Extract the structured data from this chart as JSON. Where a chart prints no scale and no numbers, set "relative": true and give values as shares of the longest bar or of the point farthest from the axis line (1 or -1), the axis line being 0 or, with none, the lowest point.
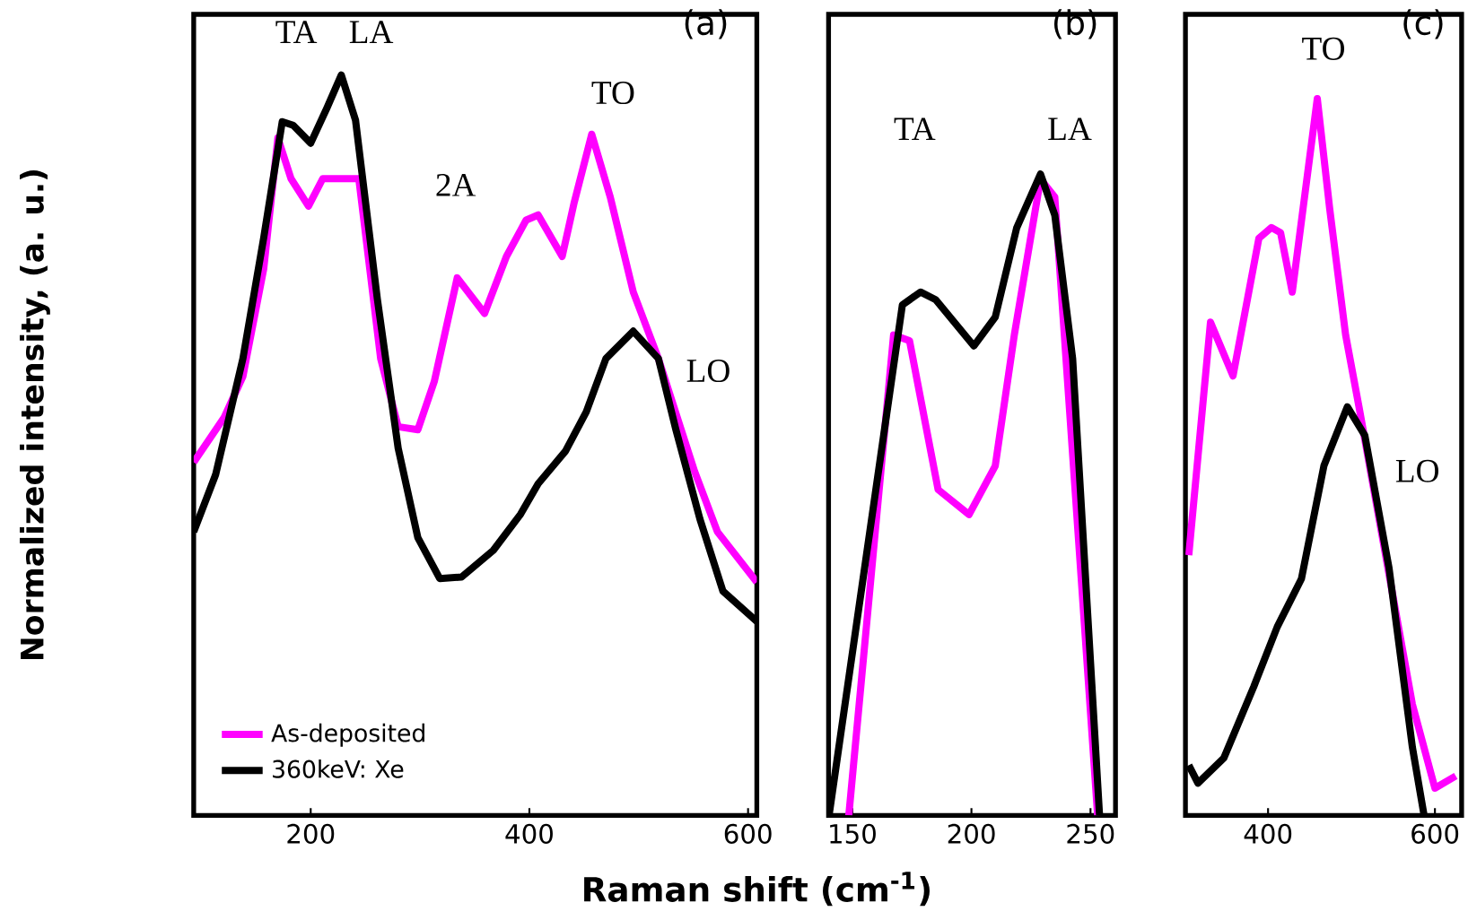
{
  "chart_data": [
    {
      "type": "line",
      "title": "(a)",
      "xlabel": "Raman shift (cm$^{-1}$)",
      "ylabel": "Normalized intensity, (a. u.)",
      "relative": true,
      "xlim": [
        93,
        608
      ],
      "xticks": [
        200,
        400,
        600
      ],
      "legend": "bottom left",
      "marker": "none",
      "line_style": "solid",
      "series": [
        {
          "name": "As-deposited",
          "color": "#ff00ff",
          "x": [
            93,
            121,
            138,
            157,
            170,
            182,
            198,
            211,
            228,
            244,
            264,
            280,
            298,
            313,
            334,
            359,
            379,
            397,
            408,
            430,
            441,
            457,
            474,
            495,
            518,
            551,
            572,
            608
          ],
          "values": [
            0.477,
            0.538,
            0.593,
            0.738,
            0.915,
            0.86,
            0.823,
            0.86,
            null,
            0.86,
            0.617,
            0.525,
            0.521,
            0.586,
            0.726,
            0.678,
            0.755,
            0.804,
            0.811,
            0.755,
            0.828,
            0.92,
            0.835,
            0.707,
            0.617,
            0.465,
            0.383,
            0.315
          ]
        },
        {
          "name": "360keV: Xe",
          "color": "#000000",
          "x": [
            93,
            113,
            138,
            157,
            174,
            184,
            200,
            215,
            228,
            241,
            261,
            280,
            298,
            318,
            338,
            367,
            392,
            408,
            433,
            452,
            470,
            495,
            518,
            534,
            556,
            577,
            608
          ],
          "values": [
            0.383,
            0.46,
            0.617,
            0.78,
            0.937,
            0.932,
            0.908,
            0.956,
            1.0,
            0.939,
            0.697,
            0.496,
            0.375,
            0.32,
            0.322,
            0.358,
            0.407,
            0.448,
            0.492,
            0.545,
            0.617,
            0.654,
            0.617,
            0.521,
            0.4,
            0.303,
            0.262
          ]
        }
      ],
      "annotations": [
        "TA",
        "LA",
        "2A",
        "TO",
        "LO"
      ]
    },
    {
      "type": "line",
      "title": "(b)",
      "relative": true,
      "xlim": [
        140,
        260.5
      ],
      "xticks": [
        150,
        200,
        250
      ],
      "marker": "none",
      "line_style": "solid",
      "series": [
        {
          "color": "#ff00ff",
          "x": [
            148.5,
            167.3,
            174,
            186,
            199,
            210,
            218,
            229,
            235,
            253
          ],
          "values": [
            0,
            0.749,
            0.74,
            0.508,
            0.469,
            0.545,
            0.749,
            0.992,
            0.964,
            0
          ]
        },
        {
          "color": "#000000",
          "x": [
            140.2,
            171,
            178.6,
            185,
            201,
            210,
            219,
            229,
            235,
            242.5,
            253.8
          ],
          "values": [
            0,
            0.796,
            0.816,
            0.804,
            0.732,
            0.777,
            0.916,
            1.0,
            0.936,
            0.712,
            0
          ]
        }
      ],
      "annotations": [
        "TA",
        "LA"
      ]
    },
    {
      "type": "line",
      "title": "(c)",
      "relative": true,
      "xlim": [
        301,
        632
      ],
      "xticks": [
        400,
        600
      ],
      "marker": "none",
      "line_style": "solid",
      "series": [
        {
          "color": "#ff00ff",
          "x": [
            305,
            331,
            358,
            389,
            404,
            415,
            429,
            459,
            474,
            493,
            509,
            537,
            573,
            600,
            625
          ],
          "values": [
            0.363,
            0.688,
            0.613,
            0.805,
            0.82,
            0.813,
            0.73,
            1.0,
            0.845,
            0.67,
            0.57,
            0.388,
            0.155,
            0.038,
            0.055
          ]
        },
        {
          "color": "#000000",
          "x": [
            305,
            316,
            347,
            383,
            411,
            440,
            467,
            495,
            516,
            545,
            573,
            587
          ],
          "values": [
            0.07,
            0.045,
            0.08,
            0.18,
            0.263,
            0.33,
            0.488,
            0.57,
            0.53,
            0.345,
            0.095,
            0
          ]
        }
      ],
      "annotations": [
        "TO",
        "LO"
      ]
    }
  ]
}
